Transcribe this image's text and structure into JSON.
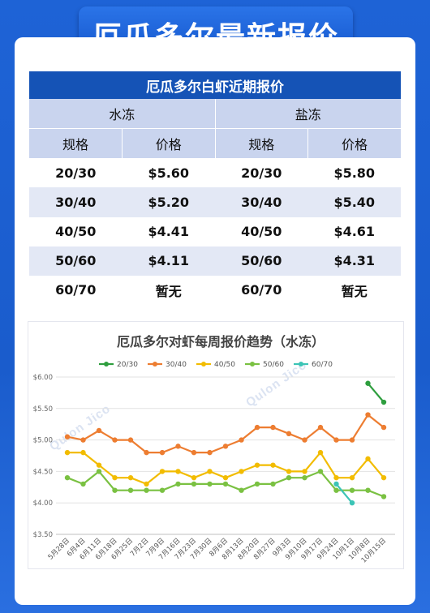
{
  "header": {
    "title": "厄瓜多尔最新报价"
  },
  "table": {
    "title": "厄瓜多尔白虾近期报价",
    "groups": [
      "水冻",
      "盐冻"
    ],
    "columns": [
      "规格",
      "价格",
      "规格",
      "价格"
    ],
    "rows": [
      [
        "20/30",
        "$5.60",
        "20/30",
        "$5.80"
      ],
      [
        "30/40",
        "$5.20",
        "30/40",
        "$5.40"
      ],
      [
        "40/50",
        "$4.41",
        "40/50",
        "$4.61"
      ],
      [
        "50/60",
        "$4.11",
        "50/60",
        "$4.31"
      ],
      [
        "60/70",
        "暂无",
        "60/70",
        "暂无"
      ]
    ]
  },
  "watermark": "Qulon Jico",
  "chart_data": {
    "type": "line",
    "title": "厄瓜多尔对虾每周报价趋势（水冻）",
    "legend_position": "top",
    "grid": true,
    "ylim": [
      3.5,
      6.0
    ],
    "yticks": [
      "$3.50",
      "$4.00",
      "$4.50",
      "$5.00",
      "$5.50",
      "$6.00"
    ],
    "x": [
      "5月28日",
      "6月4日",
      "6月11日",
      "6月18日",
      "6月25日",
      "7月2日",
      "7月9日",
      "7月16日",
      "7月23日",
      "7月30日",
      "8月6日",
      "8月13日",
      "8月20日",
      "8月27日",
      "9月3日",
      "9月10日",
      "9月17日",
      "9月24日",
      "10月1日",
      "10月8日",
      "10月15日"
    ],
    "series": [
      {
        "name": "20/30",
        "color": "#2e9e3e",
        "values": [
          null,
          null,
          null,
          null,
          null,
          null,
          null,
          null,
          null,
          null,
          null,
          null,
          null,
          null,
          null,
          null,
          null,
          null,
          null,
          5.9,
          5.6
        ]
      },
      {
        "name": "30/40",
        "color": "#ed7d31",
        "values": [
          5.05,
          5.0,
          5.15,
          5.0,
          5.0,
          4.8,
          4.8,
          4.9,
          4.8,
          4.8,
          4.9,
          5.0,
          5.2,
          5.2,
          5.1,
          5.0,
          5.2,
          5.0,
          5.0,
          5.4,
          5.2
        ]
      },
      {
        "name": "40/50",
        "color": "#f2bc00",
        "values": [
          4.8,
          4.8,
          4.6,
          4.4,
          4.4,
          4.3,
          4.5,
          4.5,
          4.4,
          4.5,
          4.4,
          4.5,
          4.6,
          4.6,
          4.5,
          4.5,
          4.8,
          4.4,
          4.4,
          4.7,
          4.4
        ]
      },
      {
        "name": "50/60",
        "color": "#7ac142",
        "values": [
          4.4,
          4.3,
          4.5,
          4.2,
          4.2,
          4.2,
          4.2,
          4.3,
          4.3,
          4.3,
          4.3,
          4.2,
          4.3,
          4.3,
          4.4,
          4.4,
          4.5,
          4.2,
          4.2,
          4.2,
          4.1
        ]
      },
      {
        "name": "60/70",
        "color": "#3cc4b6",
        "values": [
          null,
          null,
          null,
          null,
          null,
          null,
          null,
          null,
          null,
          null,
          null,
          null,
          null,
          null,
          null,
          null,
          null,
          4.3,
          4.0,
          null,
          null
        ]
      }
    ]
  }
}
